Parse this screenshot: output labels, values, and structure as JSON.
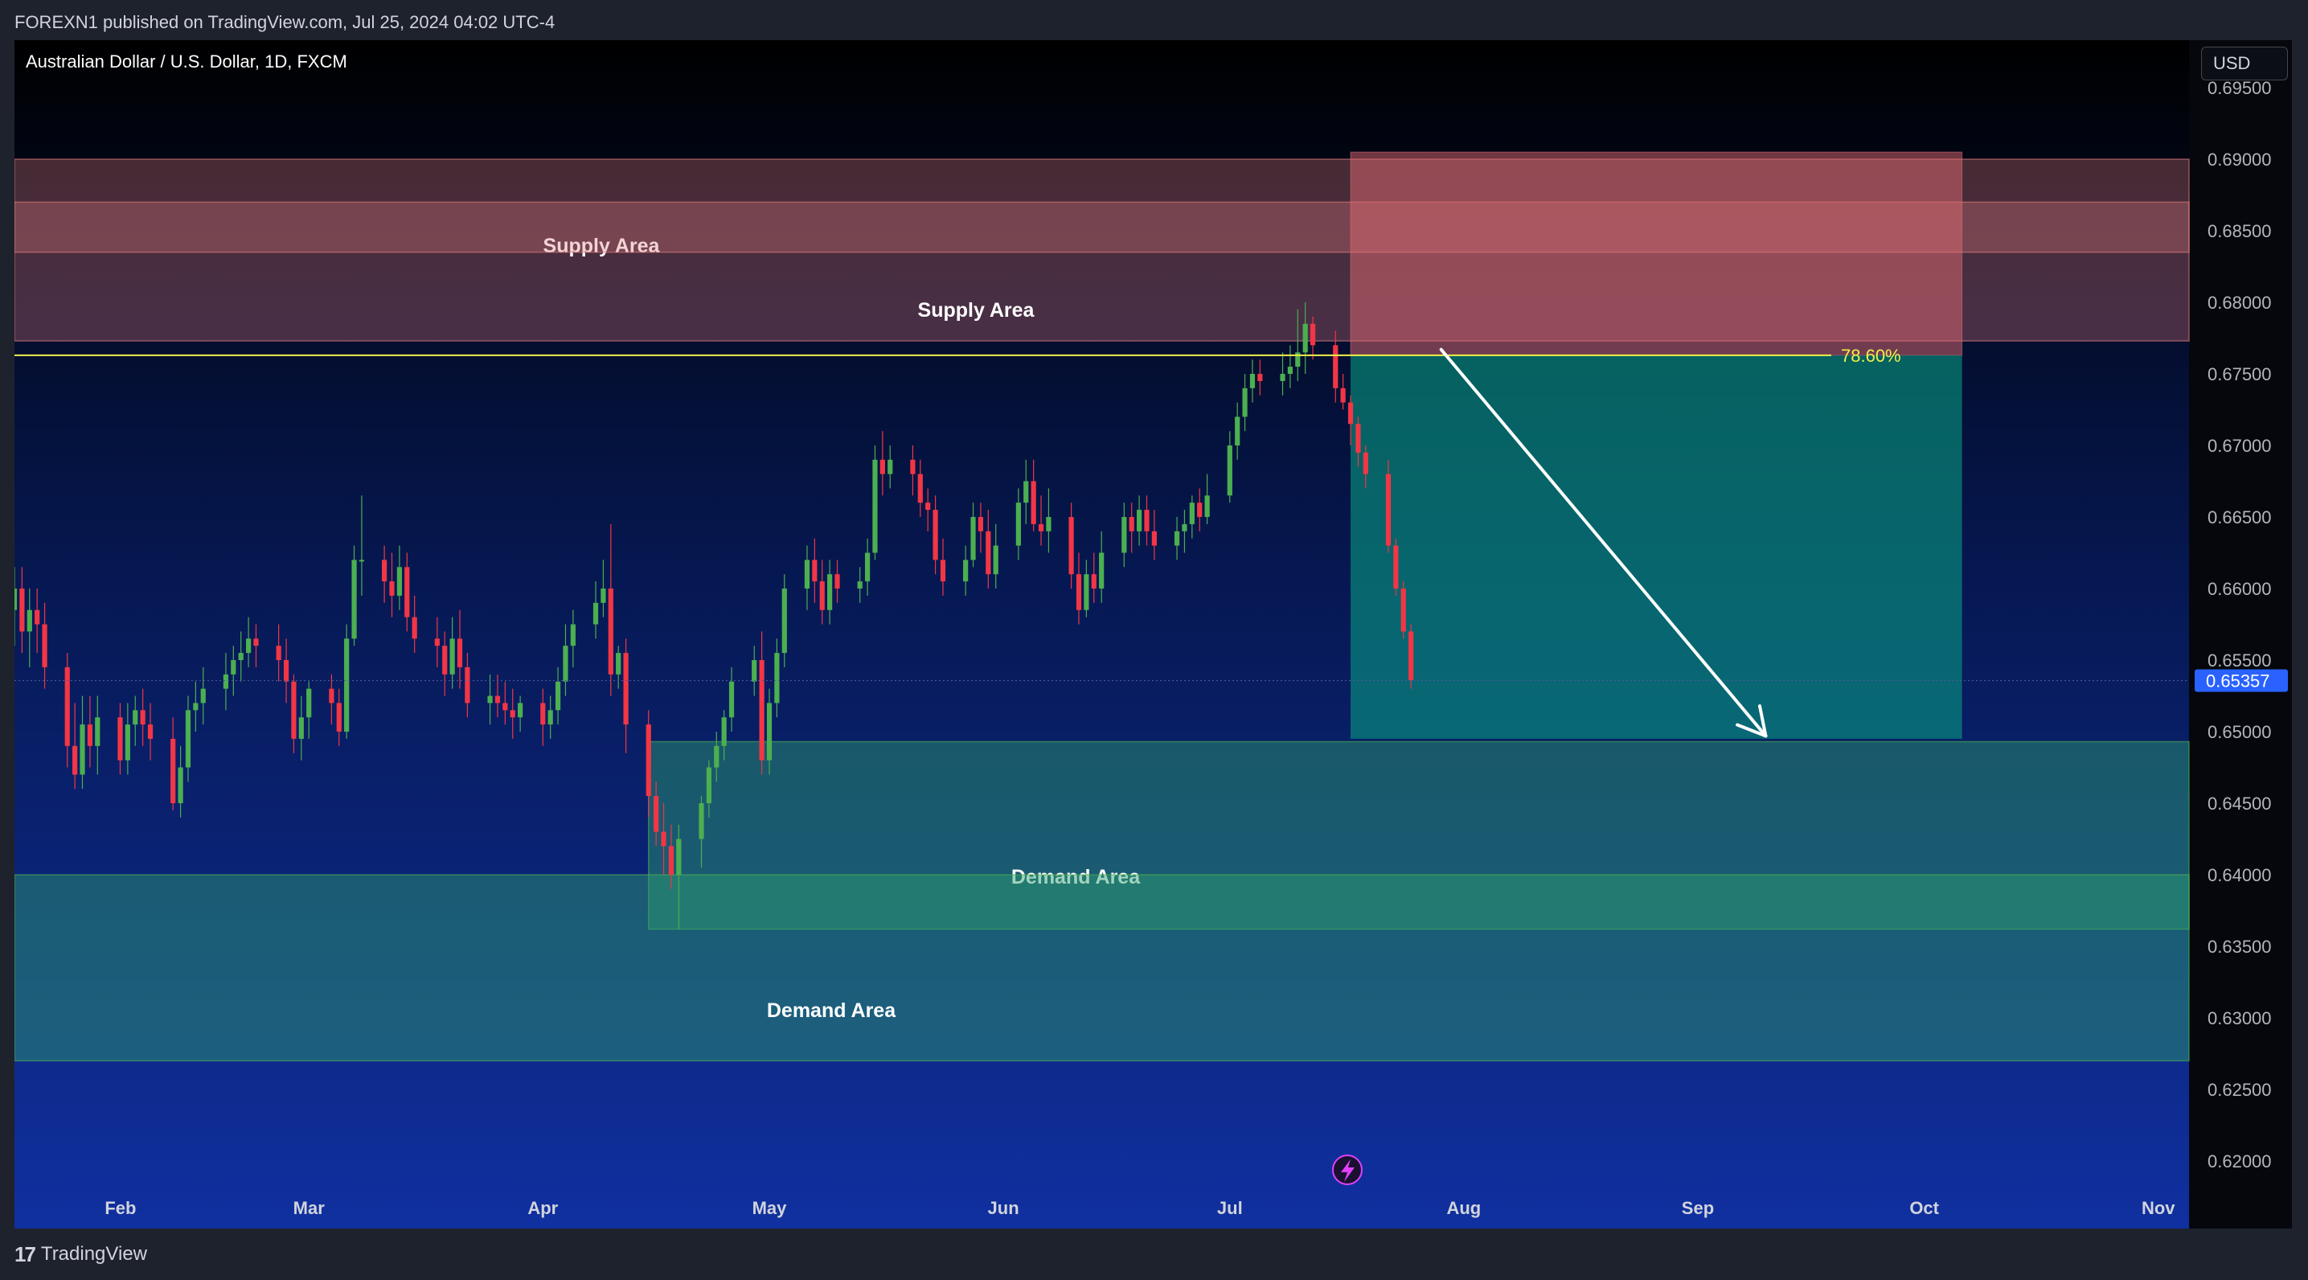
{
  "header": {
    "publisher": "FOREXN1 published on TradingView.com, Jul 25, 2024 04:02 UTC-4"
  },
  "symbol": {
    "title": "Australian Dollar / U.S. Dollar, 1D, FXCM"
  },
  "currency_button": "USD",
  "footer": {
    "logo": "17",
    "brand": "TradingView"
  },
  "colors": {
    "up": "#4caf50",
    "down": "#f23645",
    "supply": "#d9797c",
    "demand": "#2e9f6e",
    "fib_line": "#f0f04a",
    "arrow": "#ffffff",
    "last_price": "#2962ff"
  },
  "icons": {
    "lightning": "lightning-icon"
  },
  "chart_data": {
    "type": "candlestick",
    "title": "Australian Dollar / U.S. Dollar, 1D, FXCM",
    "ylim": [
      0.6175,
      0.697
    ],
    "y_ticks": [
      "0.69500",
      "0.69000",
      "0.68500",
      "0.68000",
      "0.67500",
      "0.67000",
      "0.66500",
      "0.66000",
      "0.65500",
      "0.65000",
      "0.64500",
      "0.64000",
      "0.63500",
      "0.63000",
      "0.62500",
      "0.62000"
    ],
    "x_ticks": [
      "Feb",
      "Mar",
      "Apr",
      "May",
      "Jun",
      "Jul",
      "Aug",
      "Sep",
      "Oct",
      "Nov"
    ],
    "last_price": "0.65357",
    "fib_label": "78.60%",
    "fib_level": 0.6763,
    "zones": [
      {
        "label": "Supply Area",
        "kind": "supply",
        "start": "2024-01-22",
        "end": "2024-11-30",
        "top": 0.687,
        "bottom": 0.6773
      },
      {
        "label": "Supply Area",
        "kind": "supply",
        "start": "2024-01-22",
        "end": "2024-11-30",
        "top": 0.69,
        "bottom": 0.6835
      },
      {
        "label": "Demand Area",
        "kind": "demand",
        "start": "2024-04-15",
        "end": "2024-11-30",
        "top": 0.6493,
        "bottom": 0.6362
      },
      {
        "label": "Demand Area",
        "kind": "demand",
        "start": "2024-01-22",
        "end": "2024-11-30",
        "top": 0.64,
        "bottom": 0.627
      }
    ],
    "short_position": {
      "start": "2024-07-17",
      "end": "2024-10-06",
      "entry": 0.6763,
      "stop": 0.6905,
      "target": 0.6495
    },
    "arrow": {
      "from": {
        "date": "2024-07-29",
        "price": 0.6767
      },
      "to": {
        "date": "2024-09-10",
        "price": 0.6497
      }
    },
    "candles": [
      [
        "2024-01-22",
        0.6585,
        0.66,
        0.656,
        0.6615
      ],
      [
        "2024-01-23",
        0.66,
        0.657,
        0.6555,
        0.6615
      ],
      [
        "2024-01-24",
        0.657,
        0.6585,
        0.6545,
        0.66
      ],
      [
        "2024-01-25",
        0.6585,
        0.6575,
        0.6555,
        0.66
      ],
      [
        "2024-01-26",
        0.6575,
        0.6545,
        0.653,
        0.659
      ],
      [
        "2024-01-29",
        0.6545,
        0.649,
        0.6475,
        0.6555
      ],
      [
        "2024-01-30",
        0.649,
        0.647,
        0.646,
        0.652
      ],
      [
        "2024-01-31",
        0.647,
        0.6505,
        0.646,
        0.6525
      ],
      [
        "2024-02-01",
        0.6505,
        0.649,
        0.6475,
        0.6525
      ],
      [
        "2024-02-02",
        0.649,
        0.651,
        0.647,
        0.6525
      ],
      [
        "2024-02-05",
        0.651,
        0.648,
        0.647,
        0.652
      ],
      [
        "2024-02-06",
        0.648,
        0.6505,
        0.647,
        0.652
      ],
      [
        "2024-02-07",
        0.6505,
        0.6515,
        0.649,
        0.6525
      ],
      [
        "2024-02-08",
        0.6515,
        0.6505,
        0.649,
        0.653
      ],
      [
        "2024-02-09",
        0.6505,
        0.6495,
        0.648,
        0.652
      ],
      [
        "2024-02-12",
        0.6495,
        0.645,
        0.6445,
        0.651
      ],
      [
        "2024-02-13",
        0.645,
        0.6475,
        0.644,
        0.649
      ],
      [
        "2024-02-14",
        0.6475,
        0.6515,
        0.6465,
        0.6525
      ],
      [
        "2024-02-15",
        0.6515,
        0.652,
        0.65,
        0.6535
      ],
      [
        "2024-02-16",
        0.652,
        0.653,
        0.6505,
        0.6545
      ],
      [
        "2024-02-19",
        0.653,
        0.654,
        0.6515,
        0.6555
      ],
      [
        "2024-02-20",
        0.654,
        0.655,
        0.6525,
        0.656
      ],
      [
        "2024-02-21",
        0.655,
        0.6555,
        0.6535,
        0.657
      ],
      [
        "2024-02-22",
        0.6555,
        0.6565,
        0.6545,
        0.658
      ],
      [
        "2024-02-23",
        0.6565,
        0.656,
        0.6545,
        0.6575
      ],
      [
        "2024-02-26",
        0.656,
        0.655,
        0.6535,
        0.6575
      ],
      [
        "2024-02-27",
        0.655,
        0.6535,
        0.652,
        0.6565
      ],
      [
        "2024-02-28",
        0.6535,
        0.6495,
        0.6485,
        0.654
      ],
      [
        "2024-02-29",
        0.6495,
        0.651,
        0.648,
        0.6525
      ],
      [
        "2024-03-01",
        0.651,
        0.653,
        0.6495,
        0.6535
      ],
      [
        "2024-03-04",
        0.653,
        0.652,
        0.6505,
        0.654
      ],
      [
        "2024-03-05",
        0.652,
        0.65,
        0.649,
        0.653
      ],
      [
        "2024-03-06",
        0.65,
        0.6565,
        0.6495,
        0.6575
      ],
      [
        "2024-03-07",
        0.6565,
        0.662,
        0.656,
        0.663
      ],
      [
        "2024-03-08",
        0.662,
        0.662,
        0.6595,
        0.6665
      ],
      [
        "2024-03-11",
        0.662,
        0.6605,
        0.659,
        0.663
      ],
      [
        "2024-03-12",
        0.6605,
        0.6595,
        0.658,
        0.6625
      ],
      [
        "2024-03-13",
        0.6595,
        0.6615,
        0.6585,
        0.663
      ],
      [
        "2024-03-14",
        0.6615,
        0.658,
        0.657,
        0.6625
      ],
      [
        "2024-03-15",
        0.658,
        0.6565,
        0.6555,
        0.6595
      ],
      [
        "2024-03-18",
        0.6565,
        0.656,
        0.6545,
        0.658
      ],
      [
        "2024-03-19",
        0.656,
        0.654,
        0.6525,
        0.657
      ],
      [
        "2024-03-20",
        0.654,
        0.6565,
        0.653,
        0.658
      ],
      [
        "2024-03-21",
        0.6565,
        0.6545,
        0.653,
        0.6585
      ],
      [
        "2024-03-22",
        0.6545,
        0.652,
        0.651,
        0.6555
      ],
      [
        "2024-03-25",
        0.652,
        0.6525,
        0.6505,
        0.654
      ],
      [
        "2024-03-26",
        0.6525,
        0.652,
        0.651,
        0.654
      ],
      [
        "2024-03-27",
        0.652,
        0.6515,
        0.6505,
        0.6535
      ],
      [
        "2024-03-28",
        0.6515,
        0.651,
        0.6495,
        0.653
      ],
      [
        "2024-03-29",
        0.651,
        0.652,
        0.65,
        0.6525
      ],
      [
        "2024-04-01",
        0.652,
        0.6505,
        0.649,
        0.653
      ],
      [
        "2024-04-02",
        0.6505,
        0.6515,
        0.6495,
        0.6525
      ],
      [
        "2024-04-03",
        0.6515,
        0.6535,
        0.6505,
        0.6545
      ],
      [
        "2024-04-04",
        0.6535,
        0.656,
        0.6525,
        0.6575
      ],
      [
        "2024-04-05",
        0.656,
        0.6575,
        0.6545,
        0.6585
      ],
      [
        "2024-04-08",
        0.6575,
        0.659,
        0.6565,
        0.6605
      ],
      [
        "2024-04-09",
        0.659,
        0.66,
        0.658,
        0.662
      ],
      [
        "2024-04-10",
        0.66,
        0.654,
        0.6525,
        0.6645
      ],
      [
        "2024-04-11",
        0.654,
        0.6555,
        0.653,
        0.656
      ],
      [
        "2024-04-12",
        0.6555,
        0.6505,
        0.6485,
        0.6565
      ],
      [
        "2024-04-15",
        0.6505,
        0.6455,
        0.644,
        0.6515
      ],
      [
        "2024-04-16",
        0.6455,
        0.643,
        0.642,
        0.6465
      ],
      [
        "2024-04-17",
        0.643,
        0.642,
        0.64,
        0.645
      ],
      [
        "2024-04-18",
        0.642,
        0.64,
        0.639,
        0.6435
      ],
      [
        "2024-04-19",
        0.64,
        0.6425,
        0.6362,
        0.6435
      ],
      [
        "2024-04-22",
        0.6425,
        0.645,
        0.6405,
        0.6455
      ],
      [
        "2024-04-23",
        0.645,
        0.6475,
        0.644,
        0.648
      ],
      [
        "2024-04-24",
        0.6475,
        0.649,
        0.6465,
        0.65
      ],
      [
        "2024-04-25",
        0.649,
        0.651,
        0.648,
        0.6515
      ],
      [
        "2024-04-26",
        0.651,
        0.6535,
        0.65,
        0.6545
      ],
      [
        "2024-04-29",
        0.6535,
        0.655,
        0.6525,
        0.656
      ],
      [
        "2024-04-30",
        0.655,
        0.648,
        0.647,
        0.657
      ],
      [
        "2024-05-01",
        0.648,
        0.652,
        0.647,
        0.653
      ],
      [
        "2024-05-02",
        0.652,
        0.6555,
        0.651,
        0.6565
      ],
      [
        "2024-05-03",
        0.6555,
        0.66,
        0.6545,
        0.661
      ],
      [
        "2024-05-06",
        0.66,
        0.662,
        0.6585,
        0.663
      ],
      [
        "2024-05-07",
        0.662,
        0.6605,
        0.659,
        0.6635
      ],
      [
        "2024-05-08",
        0.6605,
        0.6585,
        0.6575,
        0.662
      ],
      [
        "2024-05-09",
        0.6585,
        0.661,
        0.6575,
        0.662
      ],
      [
        "2024-05-10",
        0.661,
        0.66,
        0.659,
        0.662
      ],
      [
        "2024-05-13",
        0.66,
        0.6605,
        0.659,
        0.6615
      ],
      [
        "2024-05-14",
        0.6605,
        0.6625,
        0.6595,
        0.6635
      ],
      [
        "2024-05-15",
        0.6625,
        0.669,
        0.662,
        0.67
      ],
      [
        "2024-05-16",
        0.669,
        0.668,
        0.6665,
        0.671
      ],
      [
        "2024-05-17",
        0.668,
        0.669,
        0.667,
        0.67
      ],
      [
        "2024-05-20",
        0.669,
        0.668,
        0.6665,
        0.67
      ],
      [
        "2024-05-21",
        0.668,
        0.666,
        0.665,
        0.669
      ],
      [
        "2024-05-22",
        0.666,
        0.6655,
        0.664,
        0.667
      ],
      [
        "2024-05-23",
        0.6655,
        0.662,
        0.661,
        0.6665
      ],
      [
        "2024-05-24",
        0.662,
        0.6605,
        0.6595,
        0.6635
      ],
      [
        "2024-05-27",
        0.6605,
        0.662,
        0.6595,
        0.663
      ],
      [
        "2024-05-28",
        0.662,
        0.665,
        0.6615,
        0.666
      ],
      [
        "2024-05-29",
        0.665,
        0.664,
        0.6625,
        0.666
      ],
      [
        "2024-05-30",
        0.664,
        0.661,
        0.66,
        0.6655
      ],
      [
        "2024-05-31",
        0.661,
        0.663,
        0.66,
        0.6645
      ],
      [
        "2024-06-03",
        0.663,
        0.666,
        0.662,
        0.667
      ],
      [
        "2024-06-04",
        0.666,
        0.6675,
        0.6645,
        0.669
      ],
      [
        "2024-06-05",
        0.6675,
        0.6645,
        0.664,
        0.669
      ],
      [
        "2024-06-06",
        0.6645,
        0.664,
        0.663,
        0.6665
      ],
      [
        "2024-06-07",
        0.664,
        0.665,
        0.6625,
        0.667
      ],
      [
        "2024-06-10",
        0.665,
        0.661,
        0.66,
        0.666
      ],
      [
        "2024-06-11",
        0.661,
        0.6585,
        0.6575,
        0.6625
      ],
      [
        "2024-06-12",
        0.6585,
        0.661,
        0.658,
        0.662
      ],
      [
        "2024-06-13",
        0.661,
        0.66,
        0.659,
        0.6625
      ],
      [
        "2024-06-14",
        0.66,
        0.6625,
        0.659,
        0.664
      ],
      [
        "2024-06-17",
        0.6625,
        0.665,
        0.6615,
        0.666
      ],
      [
        "2024-06-18",
        0.665,
        0.664,
        0.6625,
        0.666
      ],
      [
        "2024-06-19",
        0.664,
        0.6655,
        0.663,
        0.6665
      ],
      [
        "2024-06-20",
        0.6655,
        0.664,
        0.663,
        0.6665
      ],
      [
        "2024-06-21",
        0.664,
        0.663,
        0.662,
        0.6655
      ],
      [
        "2024-06-24",
        0.663,
        0.664,
        0.662,
        0.665
      ],
      [
        "2024-06-25",
        0.664,
        0.6645,
        0.6625,
        0.6655
      ],
      [
        "2024-06-26",
        0.6645,
        0.666,
        0.6635,
        0.6665
      ],
      [
        "2024-06-27",
        0.666,
        0.665,
        0.664,
        0.667
      ],
      [
        "2024-06-28",
        0.665,
        0.6665,
        0.6645,
        0.668
      ],
      [
        "2024-07-01",
        0.6665,
        0.67,
        0.666,
        0.671
      ],
      [
        "2024-07-02",
        0.67,
        0.672,
        0.669,
        0.673
      ],
      [
        "2024-07-03",
        0.672,
        0.674,
        0.671,
        0.675
      ],
      [
        "2024-07-04",
        0.674,
        0.675,
        0.673,
        0.676
      ],
      [
        "2024-07-05",
        0.675,
        0.6745,
        0.6735,
        0.676
      ],
      [
        "2024-07-08",
        0.6745,
        0.675,
        0.6735,
        0.6765
      ],
      [
        "2024-07-09",
        0.675,
        0.6755,
        0.674,
        0.677
      ],
      [
        "2024-07-10",
        0.6755,
        0.6765,
        0.6745,
        0.6795
      ],
      [
        "2024-07-11",
        0.6765,
        0.6785,
        0.675,
        0.68
      ],
      [
        "2024-07-12",
        0.6785,
        0.677,
        0.676,
        0.679
      ],
      [
        "2024-07-15",
        0.677,
        0.674,
        0.673,
        0.678
      ],
      [
        "2024-07-16",
        0.674,
        0.673,
        0.6725,
        0.675
      ],
      [
        "2024-07-17",
        0.673,
        0.6715,
        0.67,
        0.6735
      ],
      [
        "2024-07-18",
        0.6715,
        0.6695,
        0.6685,
        0.672
      ],
      [
        "2024-07-19",
        0.6695,
        0.668,
        0.667,
        0.67
      ],
      [
        "2024-07-22",
        0.668,
        0.663,
        0.6625,
        0.669
      ],
      [
        "2024-07-23",
        0.663,
        0.66,
        0.6595,
        0.6635
      ],
      [
        "2024-07-24",
        0.66,
        0.657,
        0.6565,
        0.6605
      ],
      [
        "2024-07-25",
        0.657,
        0.6536,
        0.653,
        0.6575
      ]
    ]
  }
}
